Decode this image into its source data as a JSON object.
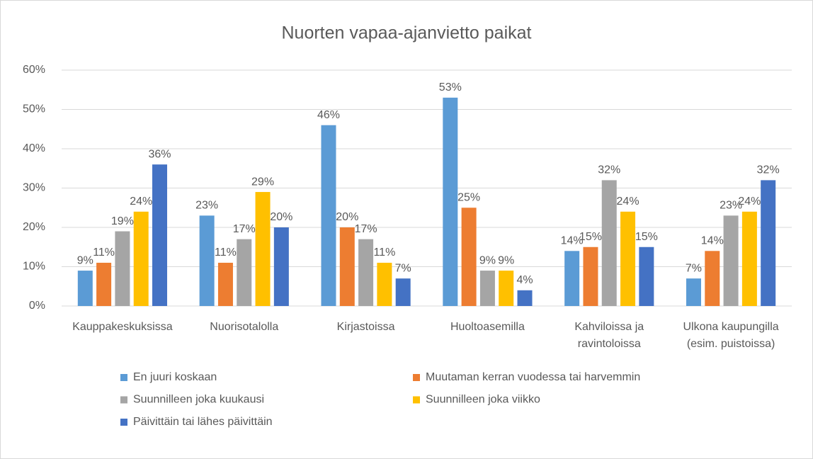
{
  "chart_data": {
    "type": "bar",
    "title": "Nuorten vapaa-ajanvietto paikat",
    "categories": [
      "Kauppakeskuksissa",
      "Nuorisotalolla",
      "Kirjastoissa",
      "Huoltoasemilla",
      "Kahviloissa ja ravintoloissa",
      "Ulkona kaupungilla (esim. puistoissa)"
    ],
    "series": [
      {
        "name": "En juuri koskaan",
        "color": "#5b9bd5",
        "values": [
          9,
          23,
          46,
          53,
          14,
          7
        ],
        "value_labels": [
          "9%",
          "23%",
          "46%",
          "53%",
          "14%",
          "7%"
        ]
      },
      {
        "name": "Muutaman kerran vuodessa tai harvemmin",
        "color": "#ed7d31",
        "values": [
          11,
          11,
          20,
          25,
          15,
          14
        ],
        "value_labels": [
          "11%",
          "11%",
          "20%",
          "25%",
          "15%",
          "14%"
        ]
      },
      {
        "name": "Suunnilleen joka kuukausi",
        "color": "#a5a5a5",
        "values": [
          19,
          17,
          17,
          9,
          32,
          23
        ],
        "value_labels": [
          "19%",
          "17%",
          "17%",
          "9%",
          "32%",
          "23%"
        ]
      },
      {
        "name": "Suunnilleen joka viikko",
        "color": "#ffc000",
        "values": [
          24,
          29,
          11,
          9,
          24,
          24
        ],
        "value_labels": [
          "24%",
          "29%",
          "11%",
          "9%",
          "24%",
          "24%"
        ]
      },
      {
        "name": "Päivittäin tai lähes päivittäin",
        "color": "#4472c4",
        "values": [
          36,
          20,
          7,
          4,
          15,
          32
        ],
        "value_labels": [
          "36%",
          "20%",
          "7%",
          "4%",
          "15%",
          "32%"
        ]
      }
    ],
    "ylim": [
      0,
      60
    ],
    "yticks": [
      {
        "value": 0,
        "label": "0%"
      },
      {
        "value": 10,
        "label": "10%"
      },
      {
        "value": 20,
        "label": "20%"
      },
      {
        "value": 30,
        "label": "30%"
      },
      {
        "value": 40,
        "label": "40%"
      },
      {
        "value": 50,
        "label": "50%"
      },
      {
        "value": 60,
        "label": "60%"
      }
    ],
    "grid": true
  }
}
